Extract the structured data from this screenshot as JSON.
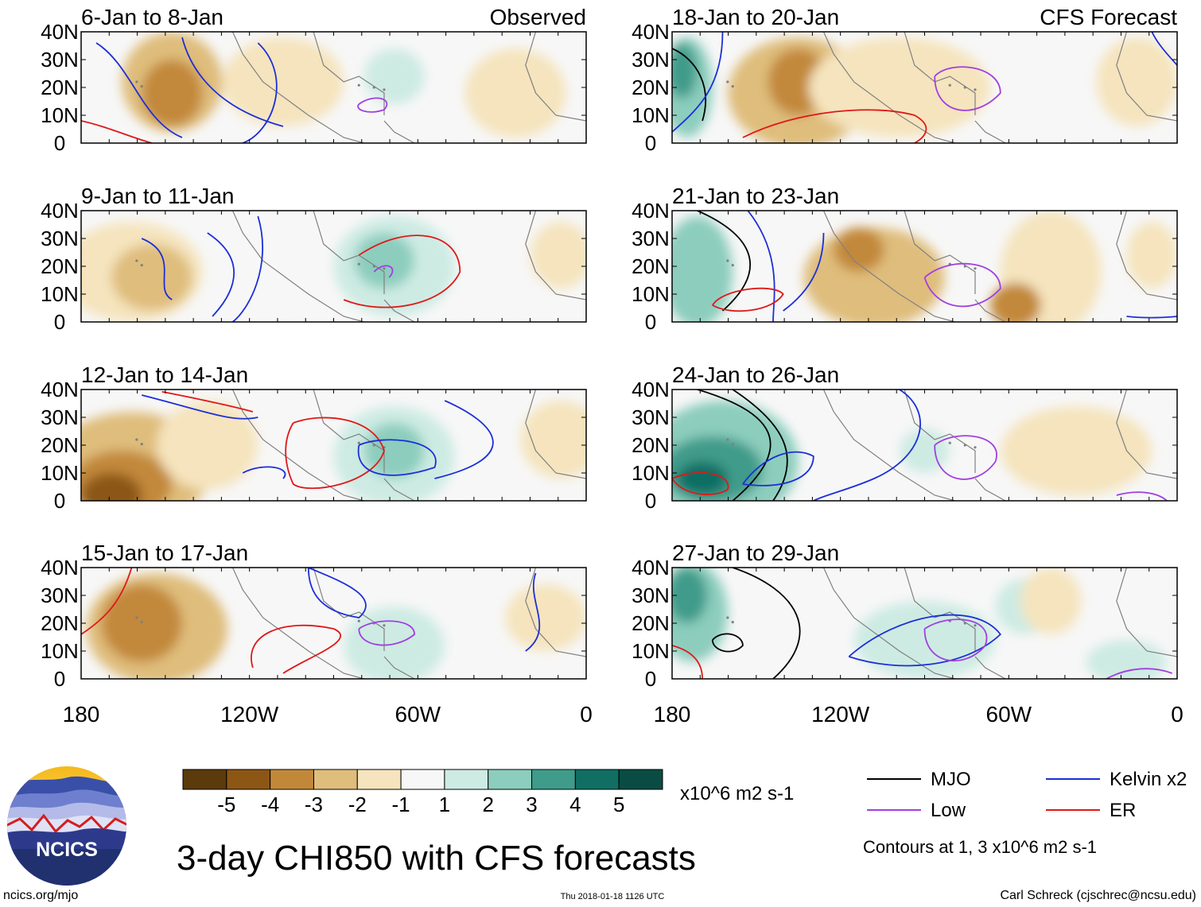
{
  "chart_data": {
    "type": "heatmap",
    "title": "3-day CHI850 with CFS forecasts",
    "variable": "CHI850",
    "units": "x10^6 m2 s-1",
    "lat_ticks": [
      "40N",
      "30N",
      "20N",
      "10N",
      "0"
    ],
    "lon_ticks": [
      "180",
      "120W",
      "60W",
      "0"
    ],
    "lat_range": [
      0,
      40
    ],
    "lon_range": [
      -180,
      0
    ],
    "left_header": "Observed",
    "right_header": "CFS Forecast",
    "panels": [
      {
        "period": "6-Jan to 8-Jan",
        "source": "Observed"
      },
      {
        "period": "9-Jan to 11-Jan",
        "source": "Observed"
      },
      {
        "period": "12-Jan to 14-Jan",
        "source": "Observed"
      },
      {
        "period": "15-Jan to 17-Jan",
        "source": "Observed"
      },
      {
        "period": "18-Jan to 20-Jan",
        "source": "CFS Forecast"
      },
      {
        "period": "21-Jan to 23-Jan",
        "source": "CFS Forecast"
      },
      {
        "period": "24-Jan to 26-Jan",
        "source": "CFS Forecast"
      },
      {
        "period": "27-Jan to 29-Jan",
        "source": "CFS Forecast"
      }
    ],
    "colorbar": {
      "labels": [
        "-5",
        "-4",
        "-3",
        "-2",
        "-1",
        "1",
        "2",
        "3",
        "4",
        "5"
      ],
      "colors": [
        "#5b3a0c",
        "#8c5615",
        "#c2883a",
        "#dfbd7c",
        "#f5e4bd",
        "#f7f7f7",
        "#cdebe3",
        "#8ccdbd",
        "#3f9b8a",
        "#106e63",
        "#0a4c44"
      ],
      "units": "x10^6 m2 s-1"
    },
    "legend": [
      {
        "label": "MJO",
        "color": "#000000"
      },
      {
        "label": "Low",
        "color": "#a040e0"
      },
      {
        "label": "Kelvin x2",
        "color": "#1c2fd8"
      },
      {
        "label": "ER",
        "color": "#e01818"
      }
    ],
    "contour_note": "Contours at 1, 3 x10^6 m2 s-1"
  },
  "footer": {
    "logo_text": "NCICS",
    "site": "ncics.org/mjo",
    "timestamp": "Thu 2018-01-18 1126 UTC",
    "author": "Carl Schreck (cjschrec@ncsu.edu)"
  }
}
